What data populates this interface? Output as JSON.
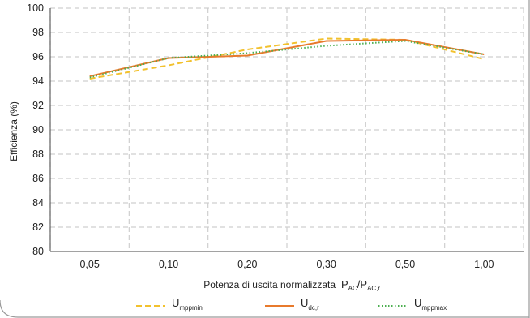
{
  "chart_data": {
    "type": "line",
    "xlabel": "Potenza di uscita normalizzata",
    "xlabel_formula": {
      "base1": "P",
      "sub1": "AC",
      "slash": "/",
      "base2": "P",
      "sub2": "AC,r"
    },
    "ylabel": "Efficienza (%)",
    "categories": [
      "0,05",
      "0,10",
      "0,20",
      "0,30",
      "0,50",
      "1,00"
    ],
    "yticks": [
      "80",
      "82",
      "84",
      "86",
      "88",
      "90",
      "92",
      "94",
      "96",
      "98",
      "100"
    ],
    "ylim": [
      80,
      100
    ],
    "grid": true,
    "legend_position": "bottom",
    "series": [
      {
        "key": "mppmin",
        "legend_base": "U",
        "legend_sub": "mppmin",
        "values": [
          94.2,
          95.3,
          96.6,
          97.5,
          97.4,
          95.8
        ],
        "color": "#f2c12e",
        "dash": "dashed"
      },
      {
        "key": "dcr",
        "legend_base": "U",
        "legend_sub": "dc,r",
        "values": [
          94.4,
          95.9,
          96.1,
          97.3,
          97.4,
          96.2
        ],
        "color": "#e87a2c",
        "dash": "solid"
      },
      {
        "key": "mppmax",
        "legend_base": "U",
        "legend_sub": "mppmax",
        "values": [
          94.3,
          95.9,
          96.3,
          96.9,
          97.3,
          96.2
        ],
        "color": "#4caf50",
        "dash": "dotted"
      }
    ],
    "colors": {
      "grid": "#cfcfcf",
      "axis": "#444444",
      "frame": "#9a9a9a"
    }
  }
}
